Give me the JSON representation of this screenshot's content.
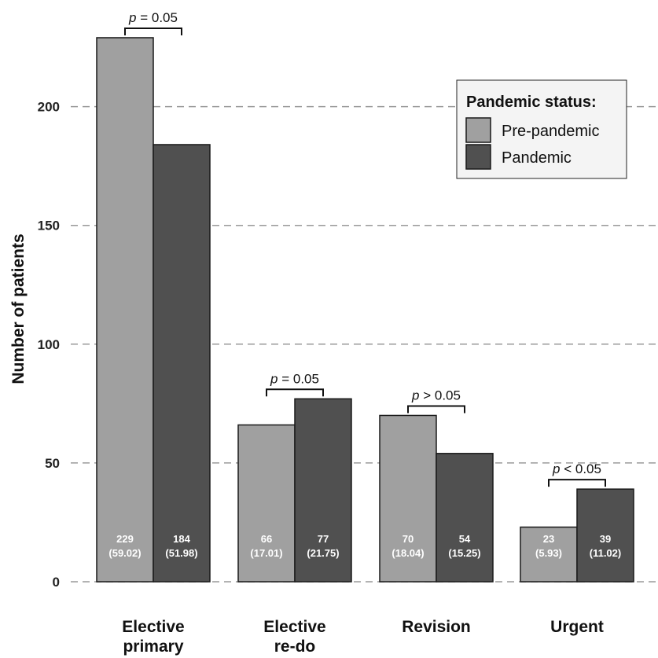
{
  "chart_data": {
    "type": "bar",
    "ylabel": "Number of patients",
    "xlabel": "",
    "ylim": [
      0,
      230
    ],
    "yticks": [
      0,
      50,
      100,
      150,
      200
    ],
    "grid": "horizontal dashed",
    "categories": [
      {
        "lines": [
          "Elective",
          "primary"
        ]
      },
      {
        "lines": [
          "Elective",
          "re-do"
        ]
      },
      {
        "lines": [
          "Revision"
        ]
      },
      {
        "lines": [
          "Urgent"
        ]
      }
    ],
    "series": [
      {
        "name": "Pre-pandemic",
        "color": "#a0a0a0",
        "values": [
          229,
          66,
          70,
          23
        ],
        "percent_labels": [
          "(59.02)",
          "(17.01)",
          "(18.04)",
          "(5.93)"
        ]
      },
      {
        "name": "Pandemic",
        "color": "#505050",
        "values": [
          184,
          77,
          54,
          39
        ],
        "percent_labels": [
          "(51.98)",
          "(21.75)",
          "(15.25)",
          "(11.02)"
        ]
      }
    ],
    "annotations": [
      {
        "p": "p",
        "text": " = 0.05"
      },
      {
        "p": "p",
        "text": " = 0.05"
      },
      {
        "p": "p",
        "text": " > 0.05"
      },
      {
        "p": "p",
        "text": " < 0.05"
      }
    ],
    "legend": {
      "title": "Pandemic status:",
      "position": "top-right"
    }
  }
}
